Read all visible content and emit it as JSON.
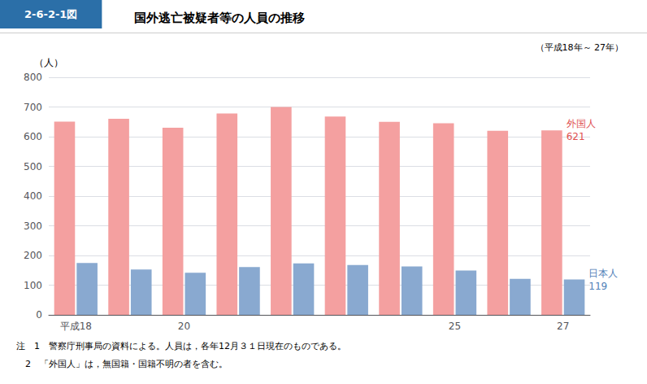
{
  "chart_data": {
    "type": "bar",
    "figure_number": "2-6-2-1図",
    "header_color": "#2B6FA8",
    "title": "国外逃亡被疑者等の人員の推移",
    "subtitle": "（平成18年～ 27年）",
    "ylabel": "（人）",
    "categories": [
      "平成18",
      null,
      "20",
      null,
      null,
      null,
      null,
      "25",
      null,
      "27"
    ],
    "series": [
      {
        "name": "外国人",
        "color": "#F4A0A0",
        "values": [
          651,
          660,
          630,
          678,
          700,
          668,
          650,
          645,
          620,
          621
        ]
      },
      {
        "name": "日本人",
        "color": "#89A9D0",
        "values": [
          175,
          153,
          142,
          161,
          173,
          168,
          163,
          149,
          121,
          119
        ]
      }
    ],
    "annotations": [
      {
        "series": "外国人",
        "lines": [
          "外国人",
          "621"
        ],
        "color": "#E05050"
      },
      {
        "series": "日本人",
        "lines": [
          "日本人",
          "119"
        ],
        "color": "#5080B8"
      }
    ],
    "ylim": [
      0,
      800
    ],
    "yticks": [
      0,
      100,
      200,
      300,
      400,
      500,
      600,
      700,
      800
    ],
    "grid": true,
    "notes": [
      "注　1　警察庁刑事局の資料による。人員は，各年12月３１日現在のものである。",
      "　2　「外国人」は，無国籍・国籍不明の者を含む。"
    ]
  }
}
